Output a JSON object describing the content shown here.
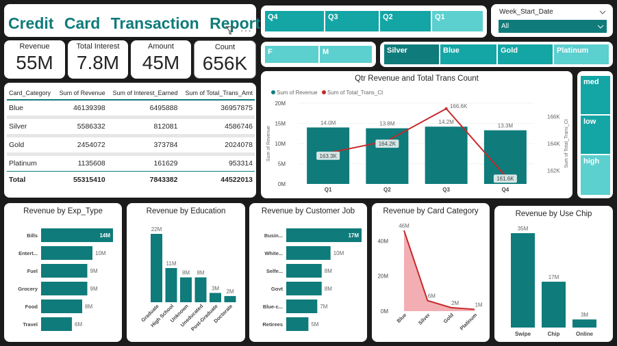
{
  "header": {
    "title": "Credit Card Transaction Report",
    "filter_icon": "filter-icon",
    "more_icon": "more-options-icon"
  },
  "kpis": [
    {
      "label": "Revenue",
      "value": "55M"
    },
    {
      "label": "Total Interest",
      "value": "7.8M"
    },
    {
      "label": "Amount",
      "value": "45M"
    },
    {
      "label": "Count",
      "value": "656K"
    }
  ],
  "table": {
    "headers": [
      "Card_Category",
      "Sum of Revenue",
      "Sum of Interest_Earned",
      "Sum of Total_Trans_Amt"
    ],
    "rows": [
      [
        "Blue",
        "46139398",
        "6495888",
        "36957875"
      ],
      [
        "Silver",
        "5586332",
        "812081",
        "4586746"
      ],
      [
        "Gold",
        "2454072",
        "373784",
        "2024078"
      ],
      [
        "Platinum",
        "1135608",
        "161629",
        "953314"
      ]
    ],
    "total": [
      "Total",
      "55315410",
      "7843382",
      "44522013"
    ]
  },
  "quarter_slicer": [
    "Q4",
    "Q3",
    "Q2",
    "Q1"
  ],
  "gender_slicer": [
    "F",
    "M"
  ],
  "card_slicer": [
    "Silver",
    "Blue",
    "Gold",
    "Platinum"
  ],
  "week_slicer": {
    "label": "Week_Start_Date",
    "value": "All"
  },
  "util_slicer": [
    "med",
    "low",
    "high"
  ],
  "colors": {
    "teal": "#0f7b7b",
    "teal_light": "#5ccfcf",
    "teal_mid": "#14a5a5",
    "red": "#c62828",
    "pink": "#f3aeb3"
  },
  "chart_data": [
    {
      "type": "bar",
      "title": "Qtr Revenue and Total Trans Count",
      "legend": [
        "Sum of Revenue",
        "Sum of Total_Trans_Ct"
      ],
      "categories": [
        "Q1",
        "Q2",
        "Q3",
        "Q4"
      ],
      "series": [
        {
          "name": "Sum of Revenue",
          "values": [
            14.0,
            13.8,
            14.2,
            13.3
          ],
          "labels": [
            "14.0M",
            "13.8M",
            "14.2M",
            "13.3M"
          ]
        },
        {
          "name": "Sum of Total_Trans_Ct",
          "values": [
            163.3,
            164.2,
            166.6,
            161.6
          ],
          "labels": [
            "163.3K",
            "164.2K",
            "166.6K",
            "161.6K"
          ]
        }
      ],
      "ylabel": "Sum of Revenue",
      "y2label": "Sum of Total_Trans_Ct",
      "yticks": [
        "0M",
        "5M",
        "10M",
        "15M",
        "20M"
      ],
      "ylim": [
        0,
        20
      ],
      "y2ticks": [
        "162K",
        "164K",
        "166K"
      ],
      "y2lim": [
        161,
        167
      ]
    },
    {
      "type": "bar",
      "title": "Revenue by Exp_Type",
      "categories": [
        "Bills",
        "Entert...",
        "Fuel",
        "Grocery",
        "Food",
        "Travel"
      ],
      "values": [
        14,
        10,
        9,
        9,
        8,
        6
      ],
      "labels": [
        "14M",
        "10M",
        "9M",
        "9M",
        "8M",
        "6M"
      ]
    },
    {
      "type": "bar",
      "title": "Revenue by Education",
      "categories": [
        "Graduate",
        "High School",
        "Unknown",
        "Uneducated",
        "Post-Graduate",
        "Doctorate"
      ],
      "values": [
        22,
        11,
        8,
        8,
        3,
        2
      ],
      "labels": [
        "22M",
        "11M",
        "8M",
        "8M",
        "3M",
        "2M"
      ]
    },
    {
      "type": "bar",
      "title": "Revenue by Customer Job",
      "categories": [
        "Busin...",
        "White...",
        "Selfe...",
        "Govt",
        "Blue-c...",
        "Retirees"
      ],
      "values": [
        17,
        10,
        8,
        8,
        7,
        5
      ],
      "labels": [
        "17M",
        "10M",
        "8M",
        "8M",
        "7M",
        "5M"
      ]
    },
    {
      "type": "area",
      "title": "Revenue by Card Category",
      "categories": [
        "Blue",
        "Silver",
        "Gold",
        "Platinum"
      ],
      "values": [
        46,
        6,
        2,
        1
      ],
      "labels": [
        "46M",
        "6M",
        "2M",
        "1M"
      ],
      "yticks": [
        "0M",
        "20M",
        "40M"
      ],
      "ylim": [
        0,
        46
      ]
    },
    {
      "type": "bar",
      "title": "Revenue by Use Chip",
      "categories": [
        "Swipe",
        "Chip",
        "Online"
      ],
      "values": [
        35,
        17,
        3
      ],
      "labels": [
        "35M",
        "17M",
        "3M"
      ]
    }
  ]
}
